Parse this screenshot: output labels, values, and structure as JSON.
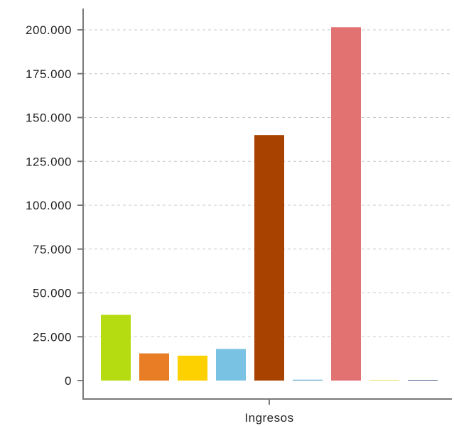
{
  "chart_data": {
    "type": "bar",
    "categories": [
      "Ingresos"
    ],
    "xlabel": "",
    "ylabel": "",
    "ylim": [
      0,
      210000
    ],
    "yticks": [
      0,
      25000,
      50000,
      75000,
      100000,
      125000,
      150000,
      175000,
      200000
    ],
    "ytick_labels": [
      "0",
      "25.000",
      "50.000",
      "75.000",
      "100.000",
      "125.000",
      "150.000",
      "175.000",
      "200.000"
    ],
    "grid": true,
    "legend": "none",
    "series": [
      {
        "values": [
          37500
        ],
        "color": "#b5dc10"
      },
      {
        "values": [
          15500
        ],
        "color": "#e87d25"
      },
      {
        "values": [
          14200
        ],
        "color": "#fdd100"
      },
      {
        "values": [
          18000
        ],
        "color": "#7ac2e4"
      },
      {
        "values": [
          140000
        ],
        "color": "#a84200"
      },
      {
        "values": [
          500
        ],
        "color": "#5ea9cf"
      },
      {
        "values": [
          201500
        ],
        "color": "#e27272"
      },
      {
        "values": [
          300
        ],
        "color": "#e8e060"
      },
      {
        "values": [
          400
        ],
        "color": "#4a5a8a"
      }
    ]
  }
}
